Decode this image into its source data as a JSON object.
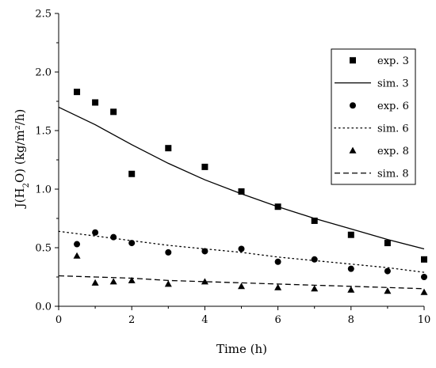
{
  "chart_data": {
    "type": "scatter",
    "title": "",
    "xlabel": "Time (h)",
    "ylabel_parts": {
      "prefix": "J(H",
      "sub": "2",
      "suffix": "O) (kg/m²/h)"
    },
    "xlim": [
      0,
      10
    ],
    "ylim": [
      0,
      2.5
    ],
    "x_ticks": [
      "0",
      "2",
      "4",
      "6",
      "8",
      "10"
    ],
    "y_ticks": [
      "0.0",
      "0.5",
      "1.0",
      "1.5",
      "2.0",
      "2.5"
    ],
    "grid": false,
    "legend_position": "top-right",
    "series": [
      {
        "name": "exp. 3",
        "kind": "markers",
        "marker": "square",
        "x": [
          0.5,
          1,
          1.5,
          2,
          3,
          4,
          5,
          6,
          7,
          8,
          9,
          10
        ],
        "y": [
          1.83,
          1.74,
          1.66,
          1.13,
          1.35,
          1.19,
          0.98,
          0.85,
          0.73,
          0.61,
          0.54,
          0.4
        ]
      },
      {
        "name": "sim. 3",
        "kind": "line",
        "dash": "solid",
        "x": [
          0,
          1,
          2,
          3,
          4,
          5,
          6,
          7,
          8,
          9,
          10
        ],
        "y": [
          1.7,
          1.55,
          1.38,
          1.22,
          1.08,
          0.96,
          0.85,
          0.75,
          0.66,
          0.57,
          0.49
        ]
      },
      {
        "name": "exp. 6",
        "kind": "markers",
        "marker": "circle",
        "x": [
          0.5,
          1,
          1.5,
          2,
          3,
          4,
          5,
          6,
          7,
          8,
          9,
          10
        ],
        "y": [
          0.53,
          0.63,
          0.59,
          0.54,
          0.46,
          0.47,
          0.49,
          0.38,
          0.4,
          0.32,
          0.3,
          0.25
        ]
      },
      {
        "name": "sim. 6",
        "kind": "line",
        "dash": "dotted",
        "x": [
          0,
          1,
          2,
          3,
          4,
          5,
          6,
          7,
          8,
          9,
          10
        ],
        "y": [
          0.64,
          0.6,
          0.56,
          0.52,
          0.49,
          0.46,
          0.42,
          0.39,
          0.36,
          0.33,
          0.29
        ]
      },
      {
        "name": "exp. 8",
        "kind": "markers",
        "marker": "triangle",
        "x": [
          0.5,
          1,
          1.5,
          2,
          3,
          4,
          5,
          6,
          7,
          8,
          9,
          10
        ],
        "y": [
          0.43,
          0.2,
          0.21,
          0.22,
          0.19,
          0.21,
          0.17,
          0.16,
          0.15,
          0.14,
          0.13,
          0.12
        ]
      },
      {
        "name": "sim. 8",
        "kind": "line",
        "dash": "dashed",
        "x": [
          0,
          1,
          2,
          3,
          4,
          5,
          6,
          7,
          8,
          9,
          10
        ],
        "y": [
          0.26,
          0.25,
          0.24,
          0.22,
          0.21,
          0.2,
          0.19,
          0.18,
          0.17,
          0.16,
          0.15
        ]
      }
    ]
  }
}
